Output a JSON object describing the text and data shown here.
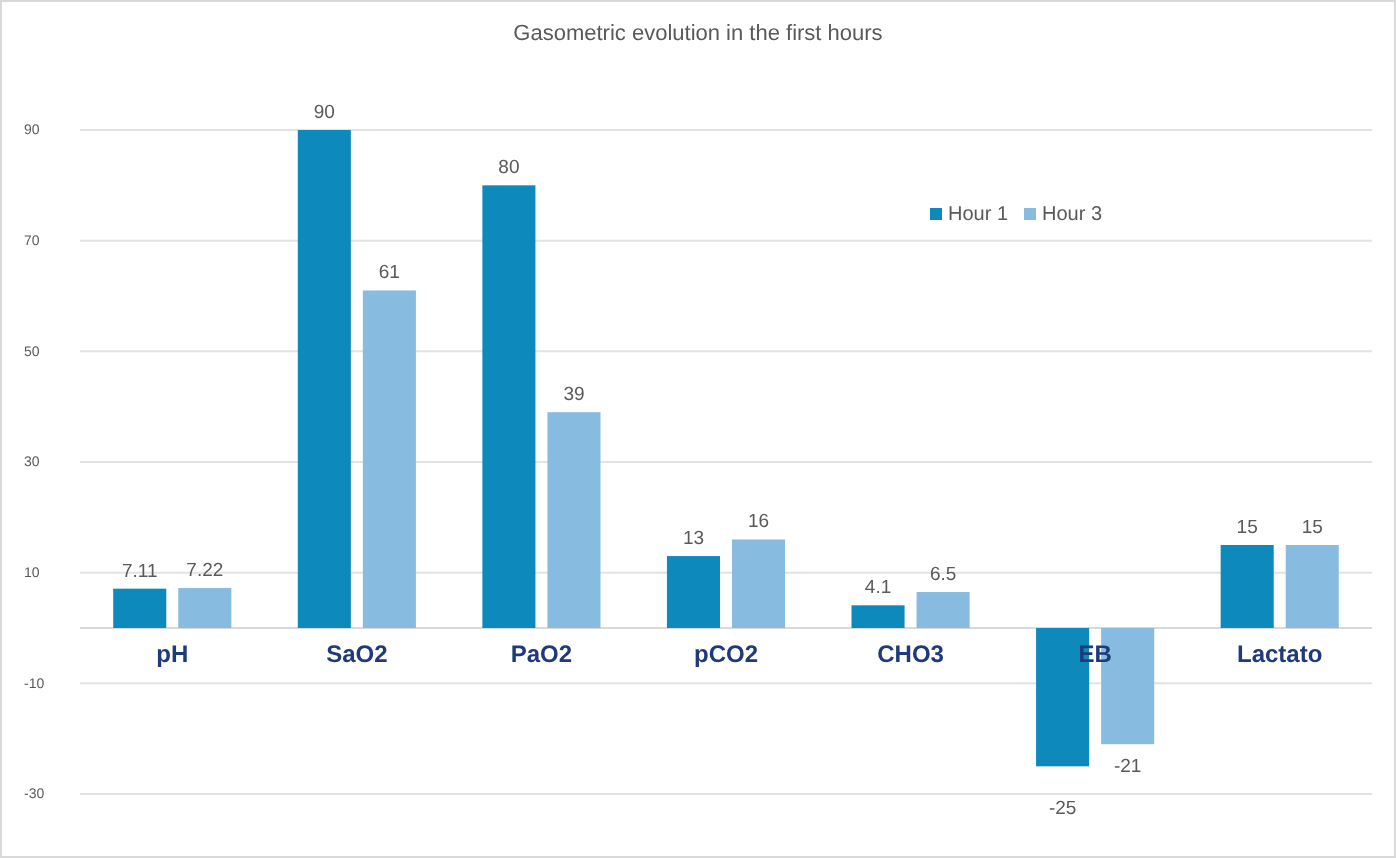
{
  "chart_data": {
    "type": "bar",
    "title": "Gasometric evolution in the first hours",
    "categories": [
      "pH",
      "SaO2",
      "PaO2",
      "pCO2",
      "CHO3",
      "EB",
      "Lactato"
    ],
    "series": [
      {
        "name": "Hour 1",
        "color": "#0e89bb",
        "values": [
          7.11,
          90,
          80,
          13,
          4.1,
          -25,
          15
        ]
      },
      {
        "name": "Hour 3",
        "color": "#88bbe0",
        "values": [
          7.22,
          61,
          39,
          16,
          6.5,
          -21,
          15
        ]
      }
    ],
    "ylim": [
      -30,
      90
    ],
    "yticks": [
      -30,
      -10,
      10,
      30,
      50,
      70,
      90
    ],
    "grid": "y",
    "legend": "top right",
    "data_labels": true
  }
}
